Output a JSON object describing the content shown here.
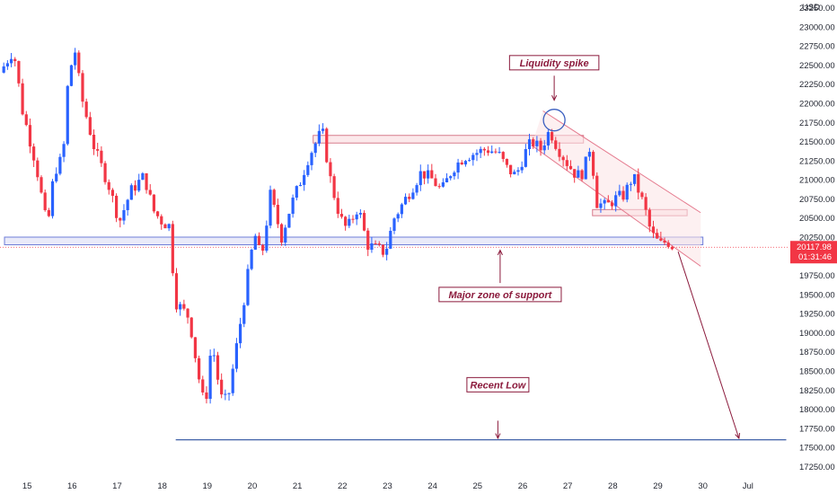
{
  "chart_data": {
    "type": "candlestick",
    "currency": "USD",
    "y_ticks": [
      23250,
      23000,
      22750,
      22500,
      22250,
      22000,
      21750,
      21500,
      21250,
      21000,
      20750,
      20500,
      20250,
      19750,
      19500,
      19250,
      19000,
      18750,
      18500,
      18250,
      18000,
      17750,
      17500,
      17250
    ],
    "y_tick_labels": [
      "23250.00",
      "23000.00",
      "22750.00",
      "22500.00",
      "22250.00",
      "22000.00",
      "21750.00",
      "21500.00",
      "21250.00",
      "21000.00",
      "20750.00",
      "20500.00",
      "20250.00",
      "19750.00",
      "19500.00",
      "19250.00",
      "19000.00",
      "18750.00",
      "18500.00",
      "18250.00",
      "18000.00",
      "17750.00",
      "17500.00",
      "17250.00"
    ],
    "ylim": [
      17150,
      23350
    ],
    "x_ticks": [
      {
        "label": "15",
        "day": 15
      },
      {
        "label": "16",
        "day": 16
      },
      {
        "label": "17",
        "day": 17
      },
      {
        "label": "18",
        "day": 18
      },
      {
        "label": "19",
        "day": 19
      },
      {
        "label": "20",
        "day": 20
      },
      {
        "label": "21",
        "day": 21
      },
      {
        "label": "22",
        "day": 22
      },
      {
        "label": "23",
        "day": 23
      },
      {
        "label": "24",
        "day": 24
      },
      {
        "label": "25",
        "day": 25
      },
      {
        "label": "26",
        "day": 26
      },
      {
        "label": "27",
        "day": 27
      },
      {
        "label": "28",
        "day": 28
      },
      {
        "label": "29",
        "day": 29
      },
      {
        "label": "30",
        "day": 30
      },
      {
        "label": "Jul",
        "day": 31
      }
    ],
    "xlim_days": [
      14.4,
      31.9
    ],
    "price_path": [
      [
        14.4,
        22400
      ],
      [
        14.7,
        22700
      ],
      [
        14.9,
        21900
      ],
      [
        15.2,
        21200
      ],
      [
        15.45,
        20350
      ],
      [
        15.6,
        21100
      ],
      [
        15.8,
        21300
      ],
      [
        15.9,
        22200
      ],
      [
        16.05,
        22750
      ],
      [
        16.2,
        22100
      ],
      [
        16.5,
        21400
      ],
      [
        16.8,
        20950
      ],
      [
        17.05,
        20450
      ],
      [
        17.3,
        20850
      ],
      [
        17.6,
        21050
      ],
      [
        17.8,
        20600
      ],
      [
        18.0,
        20450
      ],
      [
        18.15,
        20400
      ],
      [
        18.3,
        19400
      ],
      [
        18.6,
        19200
      ],
      [
        18.8,
        18450
      ],
      [
        18.95,
        18000
      ],
      [
        19.1,
        18900
      ],
      [
        19.3,
        18150
      ],
      [
        19.45,
        18100
      ],
      [
        19.7,
        19000
      ],
      [
        19.9,
        19750
      ],
      [
        20.05,
        20300
      ],
      [
        20.2,
        19950
      ],
      [
        20.4,
        20800
      ],
      [
        20.65,
        20250
      ],
      [
        20.85,
        20650
      ],
      [
        21.05,
        20950
      ],
      [
        21.25,
        21300
      ],
      [
        21.55,
        21650
      ],
      [
        21.75,
        20950
      ],
      [
        21.95,
        20500
      ],
      [
        22.1,
        20350
      ],
      [
        22.35,
        20650
      ],
      [
        22.55,
        20150
      ],
      [
        22.75,
        20100
      ],
      [
        22.95,
        20050
      ],
      [
        23.15,
        20500
      ],
      [
        23.45,
        20800
      ],
      [
        23.75,
        21100
      ],
      [
        24.0,
        21000
      ],
      [
        24.2,
        20850
      ],
      [
        24.45,
        21150
      ],
      [
        24.7,
        21300
      ],
      [
        24.95,
        21350
      ],
      [
        25.2,
        21400
      ],
      [
        25.45,
        21350
      ],
      [
        25.65,
        21150
      ],
      [
        25.85,
        21050
      ],
      [
        26.05,
        21350
      ],
      [
        26.2,
        21500
      ],
      [
        26.4,
        21400
      ],
      [
        26.6,
        21650
      ],
      [
        26.75,
        21450
      ],
      [
        26.95,
        21250
      ],
      [
        27.2,
        21050
      ],
      [
        27.35,
        21100
      ],
      [
        27.5,
        21450
      ],
      [
        27.65,
        20700
      ],
      [
        27.85,
        20650
      ],
      [
        28.05,
        20750
      ],
      [
        28.25,
        20800
      ],
      [
        28.45,
        21050
      ],
      [
        28.7,
        20650
      ],
      [
        28.85,
        20300
      ],
      [
        29.05,
        20150
      ],
      [
        29.2,
        20200
      ],
      [
        29.35,
        20117.98
      ]
    ],
    "zones": [
      {
        "name": "major-support",
        "from_day": 14.5,
        "to_day": 30.0,
        "low": 20150,
        "high": 20250
      },
      {
        "name": "resistance",
        "from_day": 21.35,
        "to_day": 27.35,
        "low": 21480,
        "high": 21580
      },
      {
        "name": "small-zone",
        "from_day": 27.55,
        "to_day": 29.65,
        "low": 20530,
        "high": 20610
      }
    ],
    "channel": {
      "upper": [
        [
          26.45,
          21900
        ],
        [
          29.95,
          20570
        ]
      ],
      "lower": [
        [
          26.2,
          21450
        ],
        [
          29.95,
          19870
        ]
      ]
    },
    "projection": {
      "from": [
        29.45,
        20060
      ],
      "to": [
        30.8,
        17620
      ]
    },
    "recent_low_line": {
      "value": 17600,
      "from_day": 18.3,
      "to_day": 31.85
    },
    "current_price": {
      "value": 20117.98,
      "label": "20117.98",
      "countdown": "01:31:46",
      "color": "#f23645"
    },
    "annotations": [
      {
        "text": "Liquidity spike",
        "day": 26.7,
        "price": 22530
      },
      {
        "text": "Major zone of support",
        "day": 25.5,
        "price": 19500
      },
      {
        "text": "Recent Low",
        "day": 25.45,
        "price": 18320
      }
    ],
    "colors": {
      "up": "#2962ff",
      "down": "#f23645",
      "zone_fill": "#e1e3f7",
      "resistance_fill": "#fbe3e6",
      "annotation_text": "#8b1a3c"
    }
  }
}
